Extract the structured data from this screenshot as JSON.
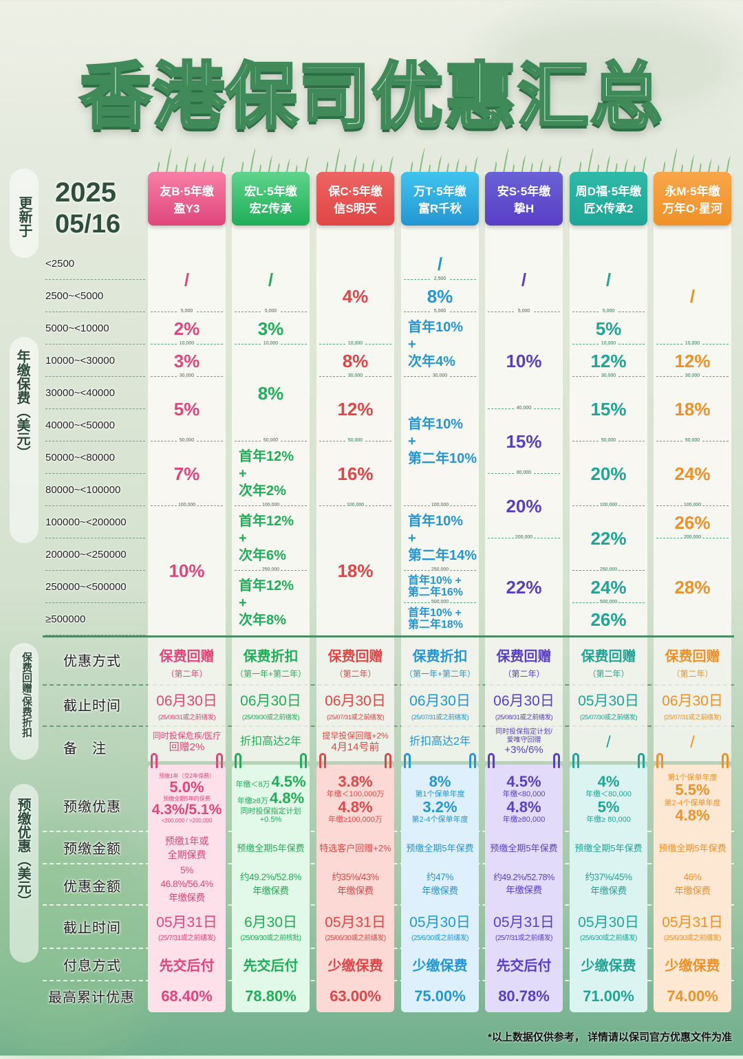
{
  "title": "香港保司优惠汇总",
  "updated": {
    "label": "更新于",
    "year": "2025",
    "date": "05/16"
  },
  "side_labels": {
    "premium": "年缴保费（美元）",
    "rebate": "保费回赠/保费折扣",
    "prepay": "预缴优惠（美元）"
  },
  "premium_rows": [
    "<2500",
    "2500~<5000",
    "5000~<10000",
    "10000~<30000",
    "30000~<40000",
    "40000~<50000",
    "50000~<80000",
    "80000~<100000",
    "100000~<200000",
    "200000~<250000",
    "250000~<500000",
    "≥500000"
  ],
  "row_labels": {
    "method": "优惠方式",
    "deadline": "截止时间",
    "note": "备　注",
    "prepay_offer": "预缴优惠",
    "prepay_amount": "预缴金额",
    "discount_amount": "优惠金额",
    "prepay_deadline": "截止时间",
    "payment": "付息方式",
    "max": "最高累计优惠"
  },
  "products": [
    {
      "company": "友B·5年缴",
      "name": "盈Y3",
      "color": "#e0457b",
      "card": "#f77fa6",
      "light": "#fde0ea",
      "premium": [
        {
          "start": 0,
          "span": 2,
          "threshold": "",
          "lines": [
            "/"
          ]
        },
        {
          "start": 2,
          "span": 1,
          "threshold": "5,000",
          "lines": [
            "2%"
          ]
        },
        {
          "start": 3,
          "span": 1,
          "threshold": "10,000",
          "lines": [
            "3%"
          ]
        },
        {
          "start": 4,
          "span": 2,
          "threshold": "30,000",
          "lines": [
            "5%"
          ]
        },
        {
          "start": 6,
          "span": 2,
          "threshold": "50,000",
          "lines": [
            "7%"
          ]
        },
        {
          "start": 8,
          "span": 4,
          "threshold": "100,000",
          "lines": [
            "10%"
          ]
        }
      ],
      "method": "保费回赠",
      "method_note": "（第二年）",
      "deadline": "06月30日",
      "deadline_note": "(25/08/31或之前缮发)",
      "note": [
        "同时投保危疾/医疗",
        "回赠2%"
      ],
      "prepay_offer": [
        {
          "c": "预缴1年（交2年保费）"
        },
        {
          "v": "5.0%"
        },
        {
          "c": "预缴全期5年的保费"
        },
        {
          "v": "4.3%/5.1%"
        },
        {
          "c": "<200,000 /  >200,000"
        }
      ],
      "prepay_amount": [
        "预缴1年或",
        "全期保费"
      ],
      "discount_amount": [
        "5%",
        "46.8%/56.4%",
        "年缴保费"
      ],
      "prepay_deadline": "05月31日",
      "prepay_deadline_note": "(25/7/31或之前缮发)",
      "payment": "先交后付",
      "max": "68.40%"
    },
    {
      "company": "宏L·5年缴",
      "name": "宏Z传承",
      "color": "#1fae58",
      "card": "#5fd38c",
      "light": "#e2f8e8",
      "premium": [
        {
          "start": 0,
          "span": 2,
          "threshold": "",
          "lines": [
            "/"
          ]
        },
        {
          "start": 2,
          "span": 1,
          "threshold": "5,000",
          "lines": [
            "3%"
          ]
        },
        {
          "start": 3,
          "span": 3,
          "threshold": "10,000",
          "lines": [
            "8%"
          ]
        },
        {
          "start": 6,
          "span": 2,
          "threshold": "50,000",
          "lines": [
            "首年12%",
            "+",
            "次年2%"
          ]
        },
        {
          "start": 8,
          "span": 2,
          "threshold": "100,000",
          "lines": [
            "首年12%",
            "+",
            "次年6%"
          ]
        },
        {
          "start": 10,
          "span": 2,
          "threshold": "250,000",
          "lines": [
            "首年12%",
            "+",
            "次年8%"
          ]
        }
      ],
      "method": "保费折扣",
      "method_note": "（第一年+第二年）",
      "deadline": "06月30日",
      "deadline_note": "(25/09/30或之前缮发)",
      "note": [
        "折扣高达2年"
      ],
      "prepay_offer": [
        {
          "c": "年缴＜8万",
          "v": "4.5%"
        },
        {
          "c": "年缴≥8万",
          "v": "4.8%"
        },
        {
          "c": "同时投保指定计划"
        },
        {
          "c": "+0.5%"
        }
      ],
      "prepay_amount": [
        "预缴全期5年保费"
      ],
      "discount_amount": [
        "约49.2%/52.8%",
        "年缴保费"
      ],
      "prepay_deadline": "6月30日",
      "prepay_deadline_note": "(25/09/30或之前核批)",
      "payment": "先交后付",
      "max": "78.80%"
    },
    {
      "company": "保C·5年缴",
      "name": "信S明天",
      "color": "#e04646",
      "card": "#ec6462",
      "light": "#fdd9d6",
      "premium": [
        {
          "start": 0,
          "span": 3,
          "threshold": "",
          "lines": [
            "4%"
          ]
        },
        {
          "start": 3,
          "span": 1,
          "threshold": "10,000",
          "lines": [
            "8%"
          ]
        },
        {
          "start": 4,
          "span": 2,
          "threshold": "30,000",
          "lines": [
            "12%"
          ]
        },
        {
          "start": 6,
          "span": 2,
          "threshold": "50,000",
          "lines": [
            "16%"
          ]
        },
        {
          "start": 8,
          "span": 4,
          "threshold": "100,000",
          "lines": [
            "18%"
          ]
        }
      ],
      "method": "保费回赠",
      "method_note": "（第二年）",
      "deadline": "06月30日",
      "deadline_note": "(25/07/31或之前缮发)",
      "note": [
        "提早投保回赠+2%",
        "4月14号前"
      ],
      "prepay_offer": [
        {
          "v": "3.8%"
        },
        {
          "c": "年缴＜100,000万"
        },
        {
          "v": "4.8%"
        },
        {
          "c": "年缴≥100,000万"
        }
      ],
      "prepay_amount": [
        "特选客户回赠+2%"
      ],
      "discount_amount": [
        "约35%/43%",
        "年缴保费"
      ],
      "prepay_deadline": "05月31日",
      "prepay_deadline_note": "(25/06/30或之前缮发)",
      "payment": "少缴保费",
      "max": "63.00%"
    },
    {
      "company": "万T·5年缴",
      "name": "富R千秋",
      "color": "#2496d3",
      "card": "#3fc4ee",
      "light": "#ddf0fb",
      "premium": [
        {
          "start": 0,
          "span": 1,
          "threshold": "",
          "lines": [
            "/"
          ]
        },
        {
          "start": 1,
          "span": 1,
          "threshold": "2,500",
          "lines": [
            "8%"
          ]
        },
        {
          "start": 2,
          "span": 2,
          "threshold": "5,000",
          "lines": [
            "首年10%",
            "+",
            "次年4%"
          ]
        },
        {
          "start": 4,
          "span": 4,
          "threshold": "30,000",
          "lines": [
            "首年10%",
            "+",
            "第二年10%"
          ]
        },
        {
          "start": 8,
          "span": 2,
          "threshold": "100,000",
          "lines": [
            "首年10%",
            "+",
            "第二年14%"
          ]
        },
        {
          "start": 10,
          "span": 1,
          "threshold": "250,000",
          "lines": [
            "首年10% +",
            "第二年16%"
          ]
        },
        {
          "start": 11,
          "span": 1,
          "threshold": "500,000",
          "lines": [
            "首年10% +",
            "第二年18%"
          ]
        }
      ],
      "method": "保费折扣",
      "method_note": "（第一年+第二年）",
      "deadline": "06月30日",
      "deadline_note": "(25/07/31或之前缮发)",
      "note": [
        "折扣高达2年"
      ],
      "prepay_offer": [
        {
          "v": "8%"
        },
        {
          "c": "第1个保单年度"
        },
        {
          "v": "3.2%"
        },
        {
          "c": "第2-4个保单年度"
        }
      ],
      "prepay_amount": [
        "预缴全期5年保费"
      ],
      "discount_amount": [
        "约47%",
        "年缴保费"
      ],
      "prepay_deadline": "05月30日",
      "prepay_deadline_note": "(25/6/30或之前缮发)",
      "payment": "少缴保费",
      "max": "75.00%"
    },
    {
      "company": "安S·5年缴",
      "name": "挚H",
      "color": "#5a3ec6",
      "card": "#6a62d6",
      "light": "#e2dcfa",
      "premium": [
        {
          "start": 0,
          "span": 2,
          "threshold": "",
          "lines": [
            "/"
          ]
        },
        {
          "start": 2,
          "span": 3,
          "threshold": "5,000",
          "lines": [
            "10%"
          ]
        },
        {
          "start": 5,
          "span": 2,
          "threshold": "40,000",
          "lines": [
            "15%"
          ]
        },
        {
          "start": 7,
          "span": 2,
          "threshold": "80,000",
          "lines": [
            "20%"
          ]
        },
        {
          "start": 9,
          "span": 3,
          "threshold": "200,000",
          "lines": [
            "22%"
          ]
        }
      ],
      "method": "保费回赠",
      "method_note": "（第二年）",
      "deadline": "06月30日",
      "deadline_note": "(25/08/31或之前缮发)",
      "note": [
        "同时投保指定计划/",
        "爱唯守回赠",
        "+3%/6%"
      ],
      "prepay_offer": [
        {
          "v": "4.5%"
        },
        {
          "c": "年缴<80,000"
        },
        {
          "v": "4.8%"
        },
        {
          "c": "年缴≥80,000"
        }
      ],
      "prepay_amount": [
        "预缴全期5年保费"
      ],
      "discount_amount": [
        "约49.2%/52.78%",
        "年缴保费"
      ],
      "prepay_deadline": "05月31日",
      "prepay_deadline_note": "(25/7/31或之前缮发)",
      "payment": "先交后付",
      "max": "80.78%"
    },
    {
      "company": "周D福·5年缴",
      "name": "匠X传承2",
      "color": "#1ea596",
      "card": "#2fb9a8",
      "light": "#dcf4f1",
      "premium": [
        {
          "start": 0,
          "span": 2,
          "threshold": "",
          "lines": [
            "/"
          ]
        },
        {
          "start": 2,
          "span": 1,
          "threshold": "5,000",
          "lines": [
            "5%"
          ]
        },
        {
          "start": 3,
          "span": 1,
          "threshold": "10,000",
          "lines": [
            "12%"
          ]
        },
        {
          "start": 4,
          "span": 2,
          "threshold": "30,000",
          "lines": [
            "15%"
          ]
        },
        {
          "start": 6,
          "span": 2,
          "threshold": "50,000",
          "lines": [
            "20%"
          ]
        },
        {
          "start": 8,
          "span": 2,
          "threshold": "100,000",
          "lines": [
            "22%"
          ]
        },
        {
          "start": 10,
          "span": 1,
          "threshold": "250,000",
          "lines": [
            "24%"
          ]
        },
        {
          "start": 11,
          "span": 1,
          "threshold": "500,000",
          "lines": [
            "26%"
          ]
        }
      ],
      "method": "保费回赠",
      "method_note": "（第二年）",
      "deadline": "05月30日",
      "deadline_note": "(25/07/30或之前缮发)",
      "note": [
        "/"
      ],
      "prepay_offer": [
        {
          "v": "4%"
        },
        {
          "c": "年缴＜80,000"
        },
        {
          "v": "5%"
        },
        {
          "c": "年缴≥ 80,000"
        }
      ],
      "prepay_amount": [
        "预缴全期5年保费"
      ],
      "discount_amount": [
        "约37%/45%",
        "年缴保费"
      ],
      "prepay_deadline": "05月30日",
      "prepay_deadline_note": "(25/6/30或之前缮发)",
      "payment": "少缴保费",
      "max": "71.00%"
    },
    {
      "company": "永M·5年缴",
      "name": "万年O·星河",
      "color": "#ef9127",
      "card": "#f8a64a",
      "light": "#fde8d4",
      "premium": [
        {
          "start": 0,
          "span": 3,
          "threshold": "",
          "lines": [
            "/"
          ]
        },
        {
          "start": 3,
          "span": 1,
          "threshold": "10,000",
          "lines": [
            "12%"
          ]
        },
        {
          "start": 4,
          "span": 2,
          "threshold": "30,000",
          "lines": [
            "18%"
          ]
        },
        {
          "start": 6,
          "span": 2,
          "threshold": "50,000",
          "lines": [
            "24%"
          ]
        },
        {
          "start": 8,
          "span": 1,
          "threshold": "100,000",
          "lines": [
            "26%"
          ]
        },
        {
          "start": 9,
          "span": 3,
          "threshold": "200,000",
          "lines": [
            "28%"
          ]
        }
      ],
      "method": "保费回赠",
      "method_note": "（第二年）",
      "deadline": "06月30日",
      "deadline_note": "(25/07/31或之前缮发)",
      "note": [
        "/"
      ],
      "prepay_offer": [
        {
          "c": "第1个保单年度"
        },
        {
          "v": "5.5%"
        },
        {
          "c": "第2-4个保单年度"
        },
        {
          "v": "4.8%"
        }
      ],
      "prepay_amount": [
        "预缴全期5年保费"
      ],
      "discount_amount": [
        "46%",
        "年缴保费"
      ],
      "prepay_deadline": "05月31日",
      "prepay_deadline_note": "(25/6/30或之前缮发)",
      "payment": "少缴保费",
      "max": "74.00%"
    }
  ],
  "footnote": "*以上数据仅供参考，  详情请以保司官方优惠文件为准"
}
